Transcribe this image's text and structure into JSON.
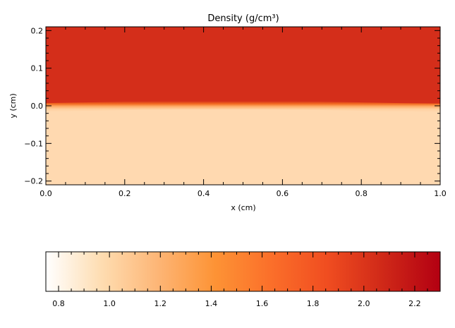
{
  "chart_data": [
    {
      "type": "heatmap",
      "title": "Density (g/cm³)",
      "xlabel": "x (cm)",
      "ylabel": "y (cm)",
      "xlim": [
        0.0,
        1.0
      ],
      "ylim": [
        -0.21,
        0.21
      ],
      "x_ticks": [
        "0.0",
        "0.2",
        "0.4",
        "0.6",
        "0.8",
        "1.0"
      ],
      "x_tick_values": [
        0.0,
        0.2,
        0.4,
        0.6,
        0.8,
        1.0
      ],
      "y_ticks": [
        "0.2",
        "0.1",
        "0.0",
        "−0.1",
        "−0.2"
      ],
      "y_tick_values": [
        0.2,
        0.1,
        0.0,
        -0.1,
        -0.2
      ],
      "regions": [
        {
          "name": "upper",
          "y_range": [
            0.0,
            0.21
          ],
          "density": 2.0
        },
        {
          "name": "lower",
          "y_range": [
            -0.21,
            0.0
          ],
          "density": 1.0
        }
      ],
      "interface_y": 0.0,
      "interface_profile": {
        "x": [
          0.0,
          0.1,
          0.2,
          0.3,
          0.4,
          0.5,
          0.6,
          0.7,
          0.8,
          0.9,
          1.0
        ],
        "y": [
          -0.004,
          -0.002,
          0.0,
          0.001,
          0.0015,
          0.0015,
          0.001,
          0.0,
          -0.002,
          -0.004,
          -0.005
        ]
      },
      "colors": {
        "upper": "#d42e1a",
        "lower": "#ffd9b0"
      },
      "grid": false
    },
    {
      "type": "colorbar",
      "range": [
        0.75,
        2.3
      ],
      "ticks": [
        "0.8",
        "1.0",
        "1.2",
        "1.4",
        "1.6",
        "1.8",
        "2.0",
        "2.2"
      ],
      "tick_values": [
        0.8,
        1.0,
        1.2,
        1.4,
        1.6,
        1.8,
        2.0,
        2.2
      ],
      "colors": [
        "#ffffff",
        "#fedcb0",
        "#fdb575",
        "#fd9335",
        "#fb6f2a",
        "#f04d20",
        "#cf2818",
        "#b30012"
      ]
    }
  ]
}
